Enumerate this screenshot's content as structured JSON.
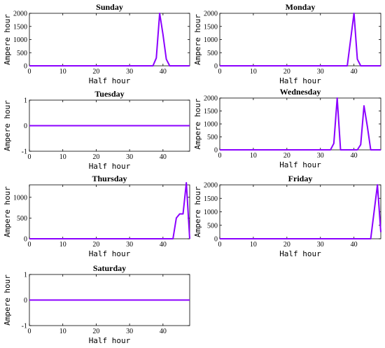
{
  "colors": {
    "series": "#8b00ff",
    "axis": "#000000"
  },
  "chart_data": [
    {
      "type": "line",
      "title": "Sunday",
      "xlabel": "Half hour",
      "ylabel": "Ampere hour",
      "xlim": [
        0,
        48
      ],
      "ylim": [
        0,
        2000
      ],
      "xticks": [
        0,
        10,
        20,
        30,
        40
      ],
      "yticks": [
        0,
        500,
        1000,
        1500,
        2000
      ],
      "series": [
        {
          "x": [
            0,
            37,
            38,
            39,
            40,
            41,
            42,
            48
          ],
          "values": [
            0,
            0,
            300,
            2000,
            1200,
            250,
            0,
            0
          ]
        }
      ]
    },
    {
      "type": "line",
      "title": "Monday",
      "xlabel": "Half hour",
      "ylabel": "Ampere hour",
      "xlim": [
        0,
        48
      ],
      "ylim": [
        0,
        2000
      ],
      "xticks": [
        0,
        10,
        20,
        30,
        40
      ],
      "yticks": [
        0,
        500,
        1000,
        1500,
        2000
      ],
      "series": [
        {
          "x": [
            0,
            38,
            39,
            40,
            41,
            42,
            48
          ],
          "values": [
            0,
            0,
            1000,
            2000,
            250,
            0,
            0
          ]
        }
      ]
    },
    {
      "type": "line",
      "title": "Tuesday",
      "xlabel": "Half hour",
      "ylabel": "Ampere hour",
      "xlim": [
        0,
        48
      ],
      "ylim": [
        -1,
        1
      ],
      "xticks": [
        0,
        10,
        20,
        30,
        40
      ],
      "yticks": [
        -1,
        0,
        1
      ],
      "series": [
        {
          "x": [
            0,
            48
          ],
          "values": [
            0,
            0
          ]
        }
      ]
    },
    {
      "type": "line",
      "title": "Wednesday",
      "xlabel": "Half hour",
      "ylabel": "Ampere hour",
      "xlim": [
        0,
        48
      ],
      "ylim": [
        0,
        2000
      ],
      "xticks": [
        0,
        10,
        20,
        30,
        40
      ],
      "yticks": [
        0,
        500,
        1000,
        1500,
        2000
      ],
      "series": [
        {
          "x": [
            0,
            33,
            34,
            35,
            36,
            41,
            42,
            43,
            44,
            45,
            48
          ],
          "values": [
            0,
            0,
            250,
            2000,
            0,
            0,
            200,
            1700,
            900,
            0,
            0
          ]
        }
      ]
    },
    {
      "type": "line",
      "title": "Thursday",
      "xlabel": "Half hour",
      "ylabel": "Ampere hour",
      "xlim": [
        0,
        48
      ],
      "ylim": [
        0,
        1300
      ],
      "xticks": [
        0,
        10,
        20,
        30,
        40
      ],
      "yticks": [
        0,
        500,
        1000
      ],
      "series": [
        {
          "x": [
            0,
            43,
            44,
            45,
            46,
            47,
            48
          ],
          "values": [
            0,
            0,
            500,
            600,
            600,
            1350,
            0
          ]
        }
      ]
    },
    {
      "type": "line",
      "title": "Friday",
      "xlabel": "Half hour",
      "ylabel": "Ampere hour",
      "xlim": [
        0,
        48
      ],
      "ylim": [
        0,
        2000
      ],
      "xticks": [
        0,
        10,
        20,
        30,
        40
      ],
      "yticks": [
        0,
        500,
        1000,
        1500,
        2000
      ],
      "series": [
        {
          "x": [
            0,
            45,
            47,
            48
          ],
          "values": [
            0,
            0,
            2000,
            250
          ]
        }
      ]
    },
    {
      "type": "line",
      "title": "Saturday",
      "xlabel": "Half hour",
      "ylabel": "Ampere hour",
      "xlim": [
        0,
        48
      ],
      "ylim": [
        -1,
        1
      ],
      "xticks": [
        0,
        10,
        20,
        30,
        40
      ],
      "yticks": [
        -1,
        0,
        1
      ],
      "series": [
        {
          "x": [
            0,
            48
          ],
          "values": [
            0,
            0
          ]
        }
      ]
    }
  ]
}
